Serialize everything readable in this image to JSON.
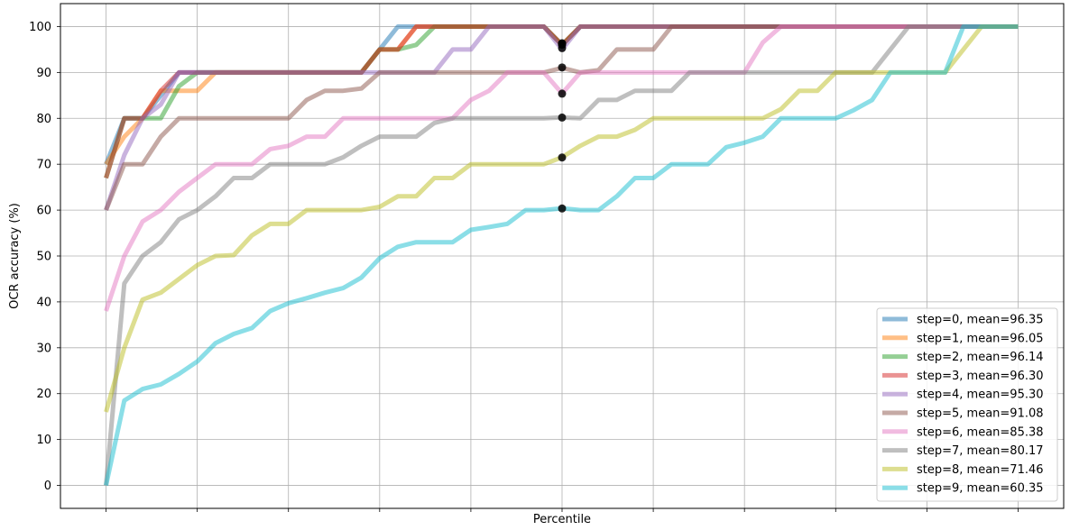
{
  "chart_data": {
    "type": "line",
    "title": "",
    "xlabel": "Percentile",
    "ylabel": "OCR accuracy (%)",
    "ylim": [
      -5,
      105
    ],
    "xlim": [
      -5,
      105
    ],
    "x_tick_values": [
      0,
      10,
      20,
      30,
      40,
      50,
      60,
      70,
      80,
      90,
      100
    ],
    "y_tick_values": [
      0,
      10,
      20,
      30,
      40,
      50,
      60,
      70,
      80,
      90,
      100
    ],
    "y_tick_labels": [
      "0",
      "10",
      "20",
      "30",
      "40",
      "50",
      "60",
      "70",
      "80",
      "90",
      "100"
    ],
    "grid": true,
    "legend_position": "lower right",
    "x": [
      0,
      2,
      4,
      6,
      8,
      10,
      12,
      14,
      16,
      18,
      20,
      22,
      24,
      26,
      28,
      30,
      32,
      34,
      36,
      38,
      40,
      42,
      44,
      46,
      48,
      50,
      52,
      54,
      56,
      58,
      60,
      62,
      64,
      66,
      68,
      70,
      72,
      74,
      76,
      78,
      80,
      82,
      84,
      86,
      88,
      90,
      92,
      94,
      96,
      98,
      100
    ],
    "series": [
      {
        "name": "step=0, mean=96.35",
        "color": "#1f77b4",
        "alpha": 0.5,
        "values": [
          70,
          80,
          80,
          85,
          90,
          90,
          90,
          90,
          90,
          90,
          90,
          90,
          90,
          90,
          90,
          95,
          100,
          100,
          100,
          100,
          100,
          100,
          100,
          100,
          100,
          96,
          100,
          100,
          100,
          100,
          100,
          100,
          100,
          100,
          100,
          100,
          100,
          100,
          100,
          100,
          100,
          100,
          100,
          100,
          100,
          100,
          100,
          100,
          100,
          100,
          100
        ]
      },
      {
        "name": "step=1, mean=96.05",
        "color": "#ff7f0e",
        "alpha": 0.5,
        "values": [
          70,
          76,
          80,
          86,
          86,
          86,
          90,
          90,
          90,
          90,
          90,
          90,
          90,
          90,
          90,
          95,
          95,
          100,
          100,
          100,
          100,
          100,
          100,
          100,
          100,
          96,
          100,
          100,
          100,
          100,
          100,
          100,
          100,
          100,
          100,
          100,
          100,
          100,
          100,
          100,
          100,
          100,
          100,
          100,
          100,
          100,
          100,
          100,
          100,
          100,
          100
        ]
      },
      {
        "name": "step=2, mean=96.14",
        "color": "#2ca02c",
        "alpha": 0.5,
        "values": [
          67,
          80,
          80,
          80,
          87,
          90,
          90,
          90,
          90,
          90,
          90,
          90,
          90,
          90,
          90,
          95,
          95,
          96,
          100,
          100,
          100,
          100,
          100,
          100,
          100,
          96,
          100,
          100,
          100,
          100,
          100,
          100,
          100,
          100,
          100,
          100,
          100,
          100,
          100,
          100,
          100,
          100,
          100,
          100,
          100,
          100,
          100,
          100,
          100,
          100,
          100
        ]
      },
      {
        "name": "step=3, mean=96.30",
        "color": "#d62728",
        "alpha": 0.5,
        "values": [
          67,
          80,
          80,
          86,
          90,
          90,
          90,
          90,
          90,
          90,
          90,
          90,
          90,
          90,
          90,
          95,
          95,
          100,
          100,
          100,
          100,
          100,
          100,
          100,
          100,
          96,
          100,
          100,
          100,
          100,
          100,
          100,
          100,
          100,
          100,
          100,
          100,
          100,
          100,
          100,
          100,
          100,
          100,
          100,
          100,
          100,
          100,
          100,
          100,
          100,
          100
        ]
      },
      {
        "name": "step=4, mean=95.30",
        "color": "#9467bd",
        "alpha": 0.5,
        "values": [
          60,
          72,
          80,
          83,
          90,
          90,
          90,
          90,
          90,
          90,
          90,
          90,
          90,
          90,
          90,
          90,
          90,
          90,
          90,
          95,
          95,
          100,
          100,
          100,
          100,
          95,
          100,
          100,
          100,
          100,
          100,
          100,
          100,
          100,
          100,
          100,
          100,
          100,
          100,
          100,
          100,
          100,
          100,
          100,
          100,
          100,
          100,
          100,
          100,
          100,
          100
        ]
      },
      {
        "name": "step=5, mean=91.08",
        "color": "#8c564b",
        "alpha": 0.5,
        "values": [
          60,
          70,
          70,
          76,
          80,
          80,
          80,
          80,
          80,
          80,
          80,
          84,
          86,
          86,
          86.5,
          90,
          90,
          90,
          90,
          90,
          90,
          90,
          90,
          90,
          90,
          91,
          90,
          90.5,
          95,
          95,
          95,
          100,
          100,
          100,
          100,
          100,
          100,
          100,
          100,
          100,
          100,
          100,
          100,
          100,
          100,
          100,
          100,
          100,
          100,
          100,
          100
        ]
      },
      {
        "name": "step=6, mean=85.38",
        "color": "#e377c2",
        "alpha": 0.5,
        "values": [
          38,
          50,
          57.5,
          60,
          64,
          67,
          70,
          70,
          70,
          73.3,
          74,
          76,
          76,
          80,
          80,
          80,
          80,
          80,
          80,
          80,
          84,
          86,
          90,
          90,
          90,
          85.4,
          90,
          90,
          90,
          90,
          90,
          90,
          90,
          90,
          90,
          90,
          96.5,
          100,
          100,
          100,
          100,
          100,
          100,
          100,
          100,
          100,
          100,
          100,
          100,
          100,
          100
        ]
      },
      {
        "name": "step=7, mean=80.17",
        "color": "#7f7f7f",
        "alpha": 0.5,
        "values": [
          0,
          44,
          50,
          53,
          58,
          60,
          63,
          67,
          67,
          70,
          70,
          70,
          70,
          71.5,
          74,
          76,
          76,
          76,
          79,
          80,
          80,
          80,
          80,
          80,
          80,
          80.2,
          80,
          84,
          84,
          86,
          86,
          86,
          90,
          90,
          90,
          90,
          90,
          90,
          90,
          90,
          90,
          90,
          90,
          95,
          100,
          100,
          100,
          100,
          100,
          100,
          100
        ]
      },
      {
        "name": "step=8, mean=71.46",
        "color": "#bcbd22",
        "alpha": 0.5,
        "values": [
          16,
          30,
          40.5,
          42,
          45,
          48,
          50,
          50.2,
          54.5,
          57,
          57,
          60,
          60,
          60,
          60,
          60.7,
          63,
          63,
          67,
          67,
          70,
          70,
          70,
          70,
          70,
          71.5,
          74,
          76,
          76,
          77.5,
          80,
          80,
          80,
          80,
          80,
          80,
          80,
          82,
          86,
          86,
          90,
          90,
          90,
          90,
          90,
          90,
          90,
          95,
          100,
          100,
          100
        ]
      },
      {
        "name": "step=9, mean=60.35",
        "color": "#17becf",
        "alpha": 0.5,
        "values": [
          0,
          18.5,
          21,
          22,
          24.3,
          27,
          31,
          33,
          34.3,
          38,
          39.7,
          40.8,
          42,
          43,
          45.3,
          49.5,
          52,
          53,
          53,
          53,
          55.7,
          56.3,
          57,
          60,
          60,
          60.4,
          60,
          60,
          63,
          67,
          67,
          70,
          70,
          70,
          73.7,
          74.7,
          76,
          80,
          80,
          80,
          80,
          81.8,
          84,
          90,
          90,
          90,
          90,
          100,
          100,
          100,
          100
        ]
      }
    ],
    "mean_markers": {
      "x": 50,
      "values": [
        96.35,
        96.05,
        96.14,
        96.3,
        95.3,
        91.08,
        85.38,
        80.17,
        71.46,
        60.35
      ]
    }
  }
}
